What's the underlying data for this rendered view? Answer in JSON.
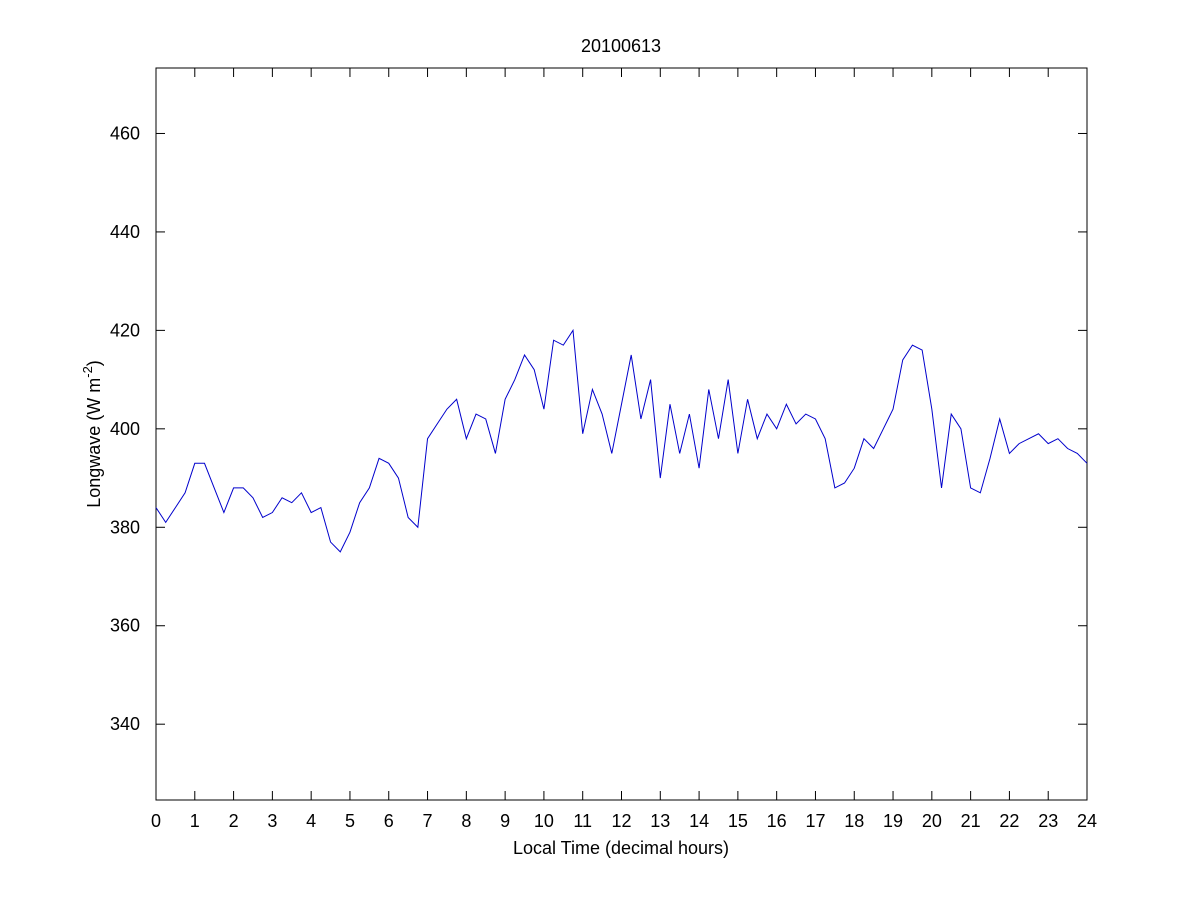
{
  "chart_data": {
    "type": "line",
    "title": "20100613",
    "xlabel": "Local Time (decimal hours)",
    "ylabel": {
      "text": "Longwave (W m",
      "superscript": "-2",
      "suffix": ")"
    },
    "x": [
      0,
      0.25,
      0.5,
      0.75,
      1,
      1.25,
      1.5,
      1.75,
      2,
      2.25,
      2.5,
      2.75,
      3,
      3.25,
      3.5,
      3.75,
      4,
      4.25,
      4.5,
      4.75,
      5,
      5.25,
      5.5,
      5.75,
      6,
      6.25,
      6.5,
      6.75,
      7,
      7.25,
      7.5,
      7.75,
      8,
      8.25,
      8.5,
      8.75,
      9,
      9.25,
      9.5,
      9.75,
      10,
      10.25,
      10.5,
      10.75,
      11,
      11.25,
      11.5,
      11.75,
      12,
      12.25,
      12.5,
      12.75,
      13,
      13.25,
      13.5,
      13.75,
      14,
      14.25,
      14.5,
      14.75,
      15,
      15.25,
      15.5,
      15.75,
      16,
      16.25,
      16.5,
      16.75,
      17,
      17.25,
      17.5,
      17.75,
      18,
      18.25,
      18.5,
      18.75,
      19,
      19.25,
      19.5,
      19.75,
      20,
      20.25,
      20.5,
      20.75,
      21,
      21.25,
      21.5,
      21.75,
      22,
      22.25,
      22.5,
      22.75,
      23,
      23.25,
      23.5,
      23.75,
      24
    ],
    "series": [
      {
        "color": "#0000cc",
        "values": [
          384,
          381,
          384,
          387,
          393,
          393,
          388,
          383,
          388,
          388,
          386,
          382,
          383,
          386,
          385,
          387,
          383,
          384,
          377,
          375,
          379,
          385,
          388,
          394,
          393,
          390,
          382,
          380,
          398,
          401,
          404,
          406,
          398,
          403,
          402,
          395,
          406,
          410,
          415,
          412,
          404,
          418,
          417,
          420,
          399,
          408,
          403,
          395,
          405,
          415,
          402,
          410,
          390,
          405,
          395,
          403,
          392,
          408,
          398,
          410,
          395,
          406,
          398,
          403,
          400,
          405,
          401,
          403,
          402,
          398,
          388,
          389,
          392,
          398,
          396,
          400,
          404,
          414,
          417,
          416,
          404,
          388,
          403,
          400,
          388,
          387,
          394,
          402,
          395,
          397,
          398,
          399,
          397,
          398,
          396,
          395,
          393
        ]
      }
    ],
    "xlim": [
      0,
      24
    ],
    "xticks": [
      0,
      1,
      2,
      3,
      4,
      5,
      6,
      7,
      8,
      9,
      10,
      11,
      12,
      13,
      14,
      15,
      16,
      17,
      18,
      19,
      20,
      21,
      22,
      23,
      24
    ],
    "ylim": [
      324.6,
      473.3
    ],
    "yticks": [
      340,
      360,
      380,
      400,
      420,
      440,
      460
    ]
  }
}
